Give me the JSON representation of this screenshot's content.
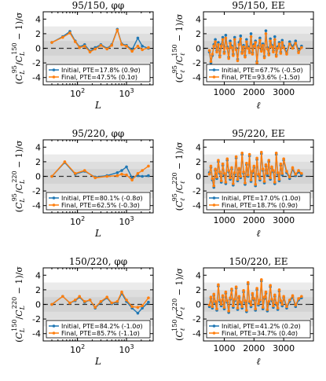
{
  "colors": {
    "initial": "#1f77b4",
    "final": "#ff7f0e",
    "band_outer": "#ebebeb",
    "band_inner": "#d3d3d3"
  },
  "chart_data": [
    {
      "type": "line",
      "title": "95/150, φφ",
      "xlabel": "L",
      "ylabel": "(C_L^95/C_L^150 − 1)/σ",
      "xscale": "log",
      "xlim": [
        20,
        3500
      ],
      "ylim": [
        -5,
        5
      ],
      "yticks": [
        "-4",
        "-2",
        "0",
        "2",
        "4"
      ],
      "series": [
        {
          "name": "Initial, PTE=17.8% (0.9σ)",
          "x": [
            30,
            50,
            70,
            90,
            110,
            140,
            180,
            230,
            300,
            400,
            500,
            650,
            800,
            1000,
            1300,
            1700,
            2100,
            2800
          ],
          "values": [
            0.8,
            1.6,
            2.3,
            1.0,
            0.2,
            0.5,
            -0.4,
            0.1,
            0.5,
            0.0,
            0.5,
            2.6,
            0.6,
            0.4,
            -0.2,
            1.4,
            0.3,
            0.0
          ]
        },
        {
          "name": "Final, PTE=47.5% (0.1σ)",
          "x": [
            30,
            50,
            70,
            90,
            110,
            140,
            180,
            230,
            300,
            400,
            500,
            650,
            800,
            1000,
            1300,
            1700,
            2100,
            2800
          ],
          "values": [
            0.8,
            1.5,
            2.1,
            0.9,
            0.1,
            0.3,
            -0.5,
            -0.1,
            0.4,
            -0.1,
            0.4,
            2.5,
            0.5,
            0.3,
            -0.4,
            0.3,
            -0.2,
            0.1
          ]
        }
      ]
    },
    {
      "type": "line",
      "title": "95/150, EE",
      "xlabel": "ℓ",
      "ylabel": "(C_ℓ^95/C_ℓ^150 − 1)/σ",
      "xscale": "linear",
      "xlim": [
        300,
        4000
      ],
      "xticks": [
        "1000",
        "2000",
        "3000"
      ],
      "ylim": [
        -5,
        5
      ],
      "yticks": [
        "-4",
        "-2",
        "0",
        "2",
        "4"
      ],
      "series": [
        {
          "name": "Initial, PTE=67.7% (-0.5σ)",
          "x": [
            500,
            550,
            600,
            650,
            700,
            750,
            800,
            850,
            900,
            950,
            1000,
            1050,
            1100,
            1150,
            1200,
            1250,
            1300,
            1350,
            1400,
            1450,
            1500,
            1550,
            1600,
            1650,
            1700,
            1750,
            1800,
            1850,
            1900,
            1950,
            2000,
            2050,
            2100,
            2150,
            2200,
            2250,
            2300,
            2350,
            2400,
            2450,
            2500,
            2550,
            2600,
            2650,
            2700,
            2750,
            2800,
            2850,
            2900,
            2950,
            3000,
            3100,
            3200,
            3300,
            3400,
            3500,
            3600
          ],
          "values": [
            -0.5,
            -2.0,
            -1.0,
            0.5,
            1.2,
            -0.3,
            0.8,
            -1.0,
            0.5,
            1.5,
            -0.5,
            1.8,
            0.2,
            -1.2,
            1.0,
            0.3,
            -0.8,
            1.5,
            0.0,
            -1.5,
            0.8,
            1.7,
            -0.5,
            0.4,
            -1.0,
            1.2,
            0.2,
            -0.4,
            2.0,
            -0.6,
            0.5,
            1.0,
            -1.8,
            0.3,
            1.4,
            -0.2,
            0.6,
            -1.1,
            2.4,
            0.1,
            -0.7,
            1.3,
            0.4,
            -0.3,
            1.6,
            -0.9,
            0.2,
            0.8,
            -0.5,
            1.1,
            0.3,
            -0.6,
            0.9,
            0.2,
            1.0,
            -0.4,
            0.3
          ]
        },
        {
          "name": "Final, PTE=93.6% (-1.5σ)",
          "x": [
            500,
            550,
            600,
            650,
            700,
            750,
            800,
            850,
            900,
            950,
            1000,
            1050,
            1100,
            1150,
            1200,
            1250,
            1300,
            1350,
            1400,
            1450,
            1500,
            1550,
            1600,
            1650,
            1700,
            1750,
            1800,
            1850,
            1900,
            1950,
            2000,
            2050,
            2100,
            2150,
            2200,
            2250,
            2300,
            2350,
            2400,
            2450,
            2500,
            2550,
            2600,
            2650,
            2700,
            2750,
            2800,
            2850,
            2900,
            2950,
            3000,
            3100,
            3200,
            3300,
            3400,
            3500,
            3600
          ],
          "values": [
            -0.3,
            -1.8,
            -0.8,
            0.3,
            0.9,
            -0.5,
            0.5,
            -1.2,
            0.3,
            1.2,
            -0.7,
            1.4,
            0.0,
            -1.4,
            0.7,
            0.1,
            -1.0,
            1.2,
            -0.2,
            -1.7,
            0.5,
            1.3,
            -0.7,
            0.2,
            -1.2,
            0.9,
            0.0,
            -0.6,
            1.6,
            -0.8,
            0.3,
            0.8,
            -2.0,
            0.1,
            1.1,
            -0.4,
            0.4,
            -1.3,
            2.0,
            -0.1,
            -0.9,
            1.0,
            0.2,
            -0.5,
            1.2,
            -1.1,
            0.0,
            0.6,
            -0.7,
            0.8,
            0.1,
            -0.8,
            0.6,
            0.0,
            0.7,
            -0.6,
            0.1
          ]
        }
      ]
    },
    {
      "type": "line",
      "title": "95/220, φφ",
      "xlabel": "L",
      "ylabel": "(C_L^95/C_L^220 − 1)/σ",
      "xscale": "log",
      "xlim": [
        20,
        3500
      ],
      "ylim": [
        -5,
        5
      ],
      "yticks": [
        "-4",
        "-2",
        "0",
        "2",
        "4"
      ],
      "series": [
        {
          "name": "Initial, PTE=80.1% (-0.8σ)",
          "x": [
            30,
            55,
            90,
            140,
            230,
            400,
            650,
            800,
            1000,
            1300,
            1700,
            2100,
            2800
          ],
          "values": [
            0.0,
            1.9,
            0.3,
            0.7,
            -0.1,
            0.1,
            0.5,
            0.8,
            1.3,
            -0.2,
            0.1,
            0.0,
            0.1
          ]
        },
        {
          "name": "Final, PTE=62.5% (-0.3σ)",
          "x": [
            30,
            55,
            90,
            140,
            230,
            400,
            650,
            800,
            1000,
            1300,
            1700,
            2100,
            2800
          ],
          "values": [
            0.0,
            2.0,
            0.4,
            0.8,
            -0.2,
            0.0,
            0.1,
            0.3,
            0.2,
            -0.5,
            0.4,
            0.8,
            1.4
          ]
        }
      ]
    },
    {
      "type": "line",
      "title": "95/220, EE",
      "xlabel": "ℓ",
      "ylabel": "(C_ℓ^95/C_ℓ^220 − 1)/σ",
      "xscale": "linear",
      "xlim": [
        300,
        4000
      ],
      "xticks": [
        "1000",
        "2000",
        "3000"
      ],
      "ylim": [
        -5,
        5
      ],
      "yticks": [
        "-4",
        "-2",
        "0",
        "2",
        "4"
      ],
      "series": [
        {
          "name": "Initial, PTE=17.0% (1.0σ)",
          "x": [
            500,
            550,
            600,
            650,
            700,
            750,
            800,
            850,
            900,
            950,
            1000,
            1050,
            1100,
            1150,
            1200,
            1250,
            1300,
            1350,
            1400,
            1450,
            1500,
            1550,
            1600,
            1650,
            1700,
            1750,
            1800,
            1850,
            1900,
            1950,
            2000,
            2050,
            2100,
            2150,
            2200,
            2250,
            2300,
            2350,
            2400,
            2450,
            2500,
            2550,
            2600,
            2650,
            2700,
            2750,
            2800,
            2850,
            2900,
            2950,
            3000,
            3100,
            3200,
            3300,
            3400,
            3500,
            3600
          ],
          "values": [
            0.5,
            1.2,
            -0.5,
            -1.5,
            0.8,
            -0.3,
            2.0,
            0.4,
            -0.8,
            1.5,
            0.2,
            -1.0,
            2.2,
            0.6,
            -0.4,
            1.0,
            -1.2,
            0.3,
            2.5,
            -0.6,
            0.9,
            -0.2,
            3.0,
            0.4,
            -1.1,
            1.6,
            0.0,
            2.8,
            -0.7,
            0.5,
            1.2,
            -1.3,
            2.3,
            0.1,
            -0.5,
            3.1,
            0.8,
            -0.9,
            1.4,
            0.2,
            2.0,
            -0.4,
            1.1,
            0.6,
            -1.0,
            3.0,
            0.3,
            -0.6,
            1.5,
            0.2,
            2.2,
            0.5,
            -0.3,
            1.0,
            0.1,
            0.6,
            0.2
          ]
        },
        {
          "name": "Final, PTE=18.7% (0.9σ)",
          "x": [
            500,
            550,
            600,
            650,
            700,
            750,
            800,
            850,
            900,
            950,
            1000,
            1050,
            1100,
            1150,
            1200,
            1250,
            1300,
            1350,
            1400,
            1450,
            1500,
            1550,
            1600,
            1650,
            1700,
            1750,
            1800,
            1850,
            1900,
            1950,
            2000,
            2050,
            2100,
            2150,
            2200,
            2250,
            2300,
            2350,
            2400,
            2450,
            2500,
            2550,
            2600,
            2650,
            2700,
            2750,
            2800,
            2850,
            2900,
            2950,
            3000,
            3100,
            3200,
            3300,
            3400,
            3500,
            3600
          ],
          "values": [
            0.3,
            1.4,
            -0.3,
            -1.3,
            1.0,
            -0.1,
            2.2,
            0.6,
            -0.6,
            1.7,
            0.4,
            -0.8,
            2.4,
            0.8,
            -0.2,
            1.2,
            -1.0,
            0.5,
            2.7,
            -0.4,
            1.1,
            0.0,
            3.2,
            0.6,
            -0.9,
            1.8,
            0.2,
            3.0,
            -0.5,
            0.7,
            1.4,
            -1.1,
            2.5,
            0.3,
            -0.3,
            3.3,
            1.0,
            -0.7,
            1.6,
            0.4,
            2.2,
            -0.2,
            1.3,
            0.8,
            -0.8,
            3.2,
            0.5,
            -0.4,
            1.7,
            0.4,
            2.4,
            0.7,
            -0.1,
            1.2,
            0.3,
            0.8,
            0.4
          ]
        }
      ]
    },
    {
      "type": "line",
      "title": "150/220, φφ",
      "xlabel": "L",
      "ylabel": "(C_L^150/C_L^220 − 1)/σ",
      "xscale": "log",
      "xlim": [
        20,
        3500
      ],
      "ylim": [
        -5,
        5
      ],
      "yticks": [
        "-4",
        "-2",
        "0",
        "2",
        "4"
      ],
      "series": [
        {
          "name": "Initial, PTE=84.2% (-1.0σ)",
          "x": [
            30,
            50,
            70,
            90,
            110,
            140,
            180,
            230,
            300,
            400,
            500,
            650,
            800,
            1000,
            1300,
            1700,
            2100,
            2800
          ],
          "values": [
            0.0,
            1.1,
            0.2,
            0.5,
            1.0,
            0.3,
            0.6,
            -0.5,
            0.3,
            0.9,
            0.1,
            0.3,
            1.5,
            0.4,
            -0.5,
            -1.2,
            -0.5,
            0.3
          ]
        },
        {
          "name": "Final, PTE=85.7% (-1.1σ)",
          "x": [
            30,
            50,
            70,
            90,
            110,
            140,
            180,
            230,
            300,
            400,
            500,
            650,
            800,
            1000,
            1300,
            1700,
            2100,
            2800
          ],
          "values": [
            0.0,
            1.1,
            0.2,
            0.6,
            1.1,
            0.4,
            0.6,
            -0.4,
            0.4,
            1.0,
            0.2,
            0.4,
            1.7,
            0.6,
            -0.3,
            -0.4,
            -0.2,
            0.9
          ]
        }
      ]
    },
    {
      "type": "line",
      "title": "150/220, EE",
      "xlabel": "ℓ",
      "ylabel": "(C_ℓ^150/C_ℓ^220 − 1)/σ",
      "xscale": "linear",
      "xlim": [
        300,
        4000
      ],
      "xticks": [
        "1000",
        "2000",
        "3000"
      ],
      "ylim": [
        -5,
        5
      ],
      "yticks": [
        "-4",
        "-2",
        "0",
        "2",
        "4"
      ],
      "series": [
        {
          "name": "Initial, PTE=41.2% (0.2σ)",
          "x": [
            500,
            550,
            600,
            650,
            700,
            750,
            800,
            850,
            900,
            950,
            1000,
            1050,
            1100,
            1150,
            1200,
            1250,
            1300,
            1350,
            1400,
            1450,
            1500,
            1550,
            1600,
            1650,
            1700,
            1750,
            1800,
            1850,
            1900,
            1950,
            2000,
            2050,
            2100,
            2150,
            2200,
            2250,
            2300,
            2350,
            2400,
            2450,
            2500,
            2550,
            2600,
            2650,
            2700,
            2750,
            2800,
            2850,
            2900,
            2950,
            3000,
            3100,
            3200,
            3300,
            3400,
            3500,
            3600
          ],
          "values": [
            -0.3,
            0.8,
            -0.5,
            1.2,
            0.2,
            -0.8,
            2.5,
            0.4,
            -0.2,
            1.0,
            -0.6,
            1.5,
            0.3,
            -1.1,
            0.7,
            1.9,
            -0.4,
            0.5,
            2.2,
            -0.7,
            0.9,
            0.1,
            -0.5,
            1.7,
            0.3,
            -1.0,
            2.8,
            0.2,
            -0.3,
            1.3,
            0.6,
            -0.8,
            2.0,
            -0.1,
            0.4,
            3.2,
            -0.6,
            0.8,
            1.5,
            -0.9,
            0.2,
            2.4,
            0.5,
            -0.4,
            1.1,
            0.0,
            -0.7,
            1.8,
            0.3,
            -0.2,
            0.9,
            -0.5,
            0.4,
            1.0,
            -0.3,
            0.6,
            0.9
          ]
        },
        {
          "name": "Final, PTE=34.7% (0.4σ)",
          "x": [
            500,
            550,
            600,
            650,
            700,
            750,
            800,
            850,
            900,
            950,
            1000,
            1050,
            1100,
            1150,
            1200,
            1250,
            1300,
            1350,
            1400,
            1450,
            1500,
            1550,
            1600,
            1650,
            1700,
            1750,
            1800,
            1850,
            1900,
            1950,
            2000,
            2050,
            2100,
            2150,
            2200,
            2250,
            2300,
            2350,
            2400,
            2450,
            2500,
            2550,
            2600,
            2650,
            2700,
            2750,
            2800,
            2850,
            2900,
            2950,
            3000,
            3100,
            3200,
            3300,
            3400,
            3500,
            3600
          ],
          "values": [
            -0.1,
            1.0,
            -0.3,
            1.4,
            0.4,
            -0.6,
            2.7,
            0.6,
            0.0,
            1.2,
            -0.4,
            1.7,
            0.5,
            -0.9,
            0.9,
            2.1,
            -0.2,
            0.7,
            2.4,
            -0.5,
            1.1,
            0.3,
            -0.3,
            1.9,
            0.5,
            -0.8,
            3.0,
            0.4,
            -0.1,
            1.5,
            0.8,
            -0.6,
            2.2,
            0.1,
            0.6,
            3.4,
            -0.4,
            1.0,
            1.7,
            -0.7,
            0.4,
            2.6,
            0.7,
            -0.2,
            1.3,
            0.2,
            -0.5,
            2.0,
            0.5,
            0.0,
            1.1,
            -0.3,
            0.6,
            1.2,
            -0.1,
            0.8,
            1.1
          ]
        }
      ]
    }
  ]
}
